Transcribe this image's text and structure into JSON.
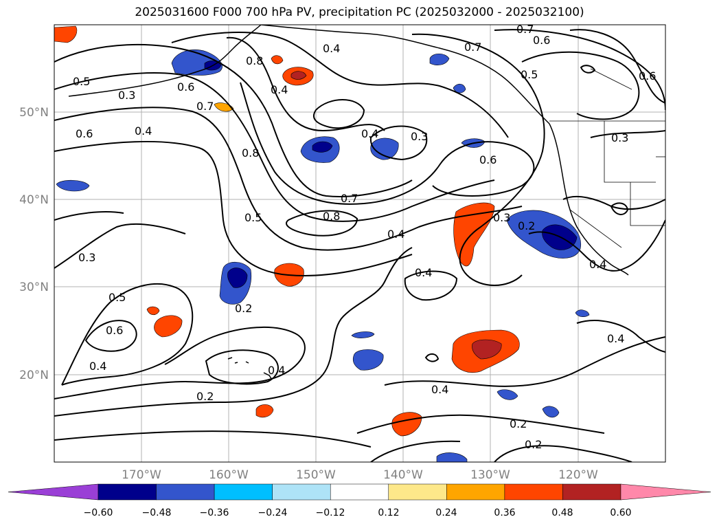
{
  "title": "2025031600 F000 700 hPa PV, precipitation PC (2025032000 - 2025032100)",
  "map": {
    "lat_labels": [
      "50°N",
      "40°N",
      "30°N",
      "20°N"
    ],
    "lon_labels": [
      "170°W",
      "160°W",
      "150°W",
      "140°W",
      "130°W",
      "120°W"
    ],
    "contour_labels": [
      "0.5",
      "0.3",
      "0.6",
      "0.4",
      "0.6",
      "0.7",
      "0.8",
      "0.4",
      "0.4",
      "0.7",
      "0.6",
      "0.5",
      "0.7",
      "0.6",
      "0.8",
      "0.4",
      "0.3",
      "0.6",
      "0.3",
      "0.5",
      "0.7",
      "0.8",
      "0.4",
      "0.3",
      "0.2",
      "0.3",
      "0.4",
      "0.4",
      "0.5",
      "0.6",
      "0.2",
      "0.4",
      "0.4",
      "0.2",
      "0.4",
      "0.2",
      "0.2",
      "0.4"
    ]
  },
  "colorbar": {
    "colors": [
      "#9a3fd6",
      "#00008b",
      "#3355cc",
      "#00bfff",
      "#aee3f7",
      "#ffffff",
      "#fde88a",
      "#ffa500",
      "#ff4500",
      "#b22222",
      "#ff88aa"
    ],
    "ticks": [
      "−0.60",
      "−0.48",
      "−0.36",
      "−0.24",
      "−0.12",
      "0.12",
      "0.24",
      "0.36",
      "0.48",
      "0.60"
    ]
  }
}
